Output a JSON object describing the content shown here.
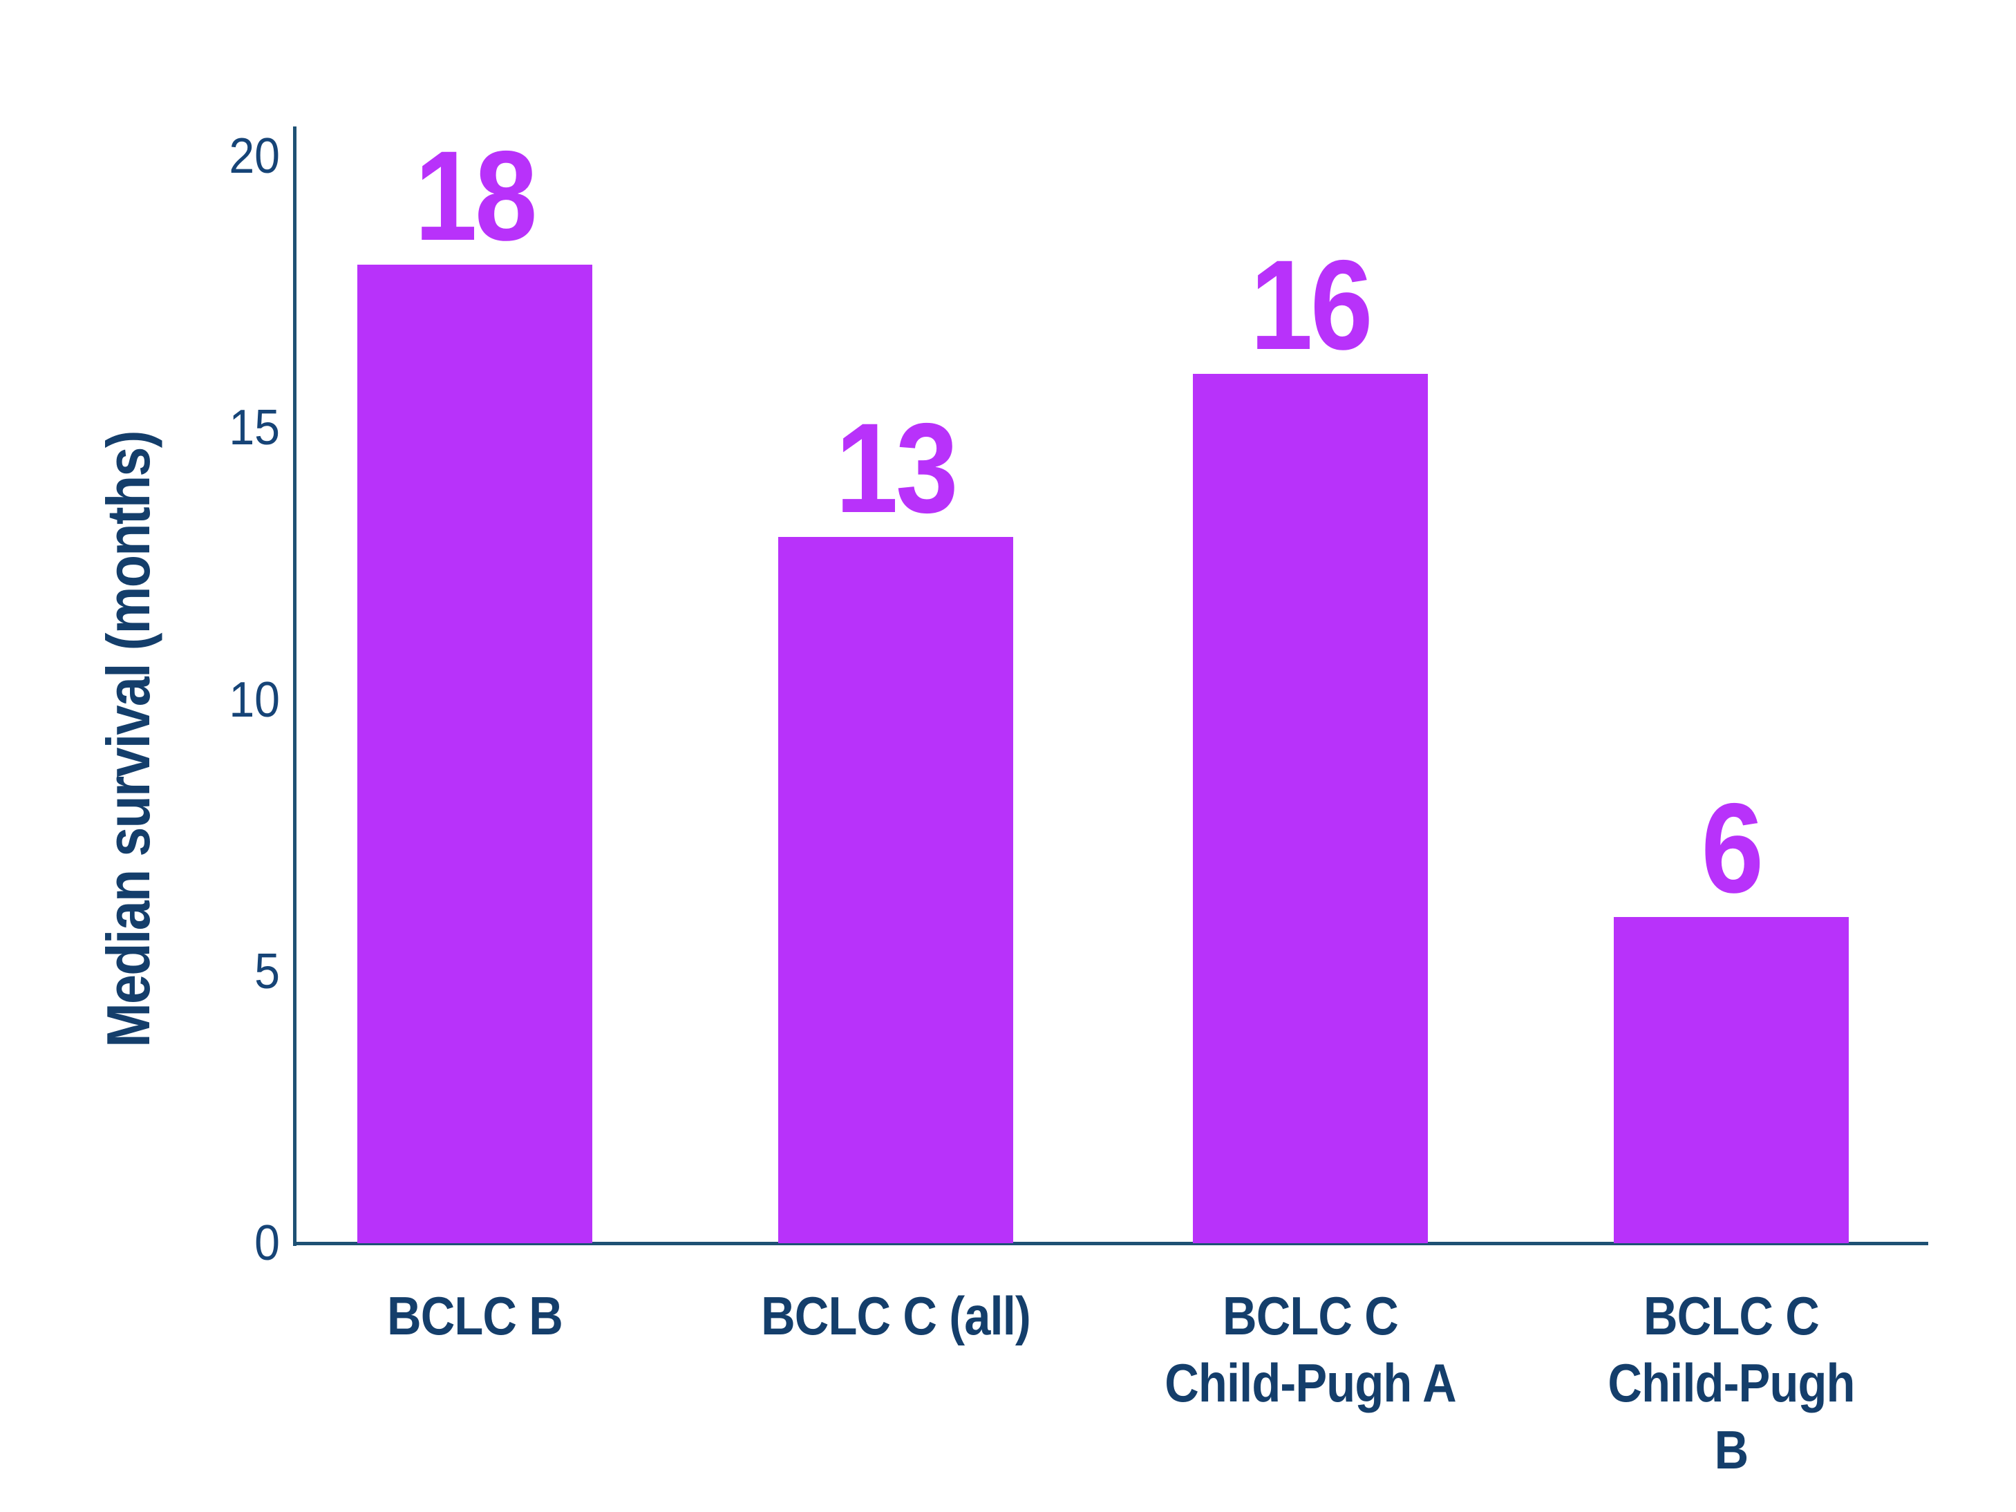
{
  "chart_data": {
    "type": "bar",
    "categories": [
      "BCLC B",
      "BCLC C (all)",
      "BCLC C\nChild-Pugh A",
      "BCLC C\nChild-Pugh B"
    ],
    "values": [
      18,
      13,
      16,
      6
    ],
    "value_labels": [
      "18",
      "13",
      "16",
      "6"
    ],
    "title": "",
    "xlabel": "",
    "ylabel": "Median survival (months)",
    "ylim": [
      0,
      20
    ],
    "yticks": [
      0,
      5,
      10,
      15,
      20
    ],
    "grid": false,
    "legend": false,
    "colors": {
      "bar": "#b832fa",
      "value_label": "#b832fa",
      "axis_line": "#1e5174",
      "tick_label": "#164477",
      "category_label": "#143e6b",
      "y_title": "#143e6b",
      "background": "#ffffff"
    }
  }
}
